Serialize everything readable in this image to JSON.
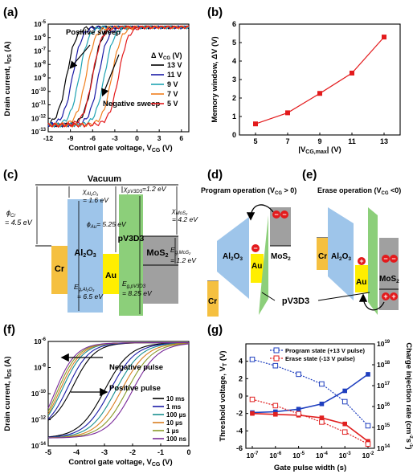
{
  "colors": {
    "c13V": "#000000",
    "c11V": "#1a1aa6",
    "c9V": "#1fa3b3",
    "c7V": "#f07f1e",
    "c5V": "#e31a1c",
    "f10ms": "#000000",
    "f1ms": "#1a1aa6",
    "f100us": "#1a8f8f",
    "f10us": "#d97f20",
    "f1us": "#8a9a2a",
    "f100ns": "#7a2a9a",
    "al2o3": "#9ec5ea",
    "pv3d3": "#8ccf7a",
    "mos2": "#a0a0a0",
    "au": "#ffee00",
    "cr": "#f5c040",
    "hole": "#e31a1c",
    "program": "#1f3fbf",
    "erase": "#e02020"
  },
  "panels": {
    "a": {
      "label": "(a)",
      "xlabel": "Control gate voltage, V",
      "xlabel_sub": "CG",
      "xlabel_unit": " (V)",
      "ylabel": "Drain current, I",
      "ylabel_sub": "DS",
      "ylabel_unit": " (A)",
      "pos_label": "Positive sweep",
      "neg_label": "Negative sweep",
      "legend_title": "Δ V",
      "legend_title_sub": "CG",
      "legend_title_unit": " (V)",
      "legend": [
        "13 V",
        "11 V",
        "9 V",
        "7 V",
        "5 V"
      ],
      "xticks": [
        "-12",
        "-9",
        "-6",
        "-3",
        "0",
        "3",
        "6"
      ],
      "ytick_mant": [
        "10",
        "10",
        "10",
        "10",
        "10",
        "10",
        "10",
        "10",
        "10"
      ],
      "ytick_exp": [
        "-5",
        "-6",
        "-7",
        "-8",
        "-9",
        "-10",
        "-11",
        "-12",
        "-13"
      ]
    },
    "b": {
      "label": "(b)",
      "xlabel": "|V",
      "xlabel_sub": "CG,max",
      "xlabel_unit": "| (V)",
      "ylabel": "Memory window, ΔV (V)",
      "xticks": [
        "5",
        "7",
        "9",
        "11",
        "13"
      ],
      "yticks": [
        "0",
        "1",
        "2",
        "3",
        "4",
        "5",
        "6"
      ]
    },
    "c": {
      "label": "(c)",
      "vacuum": "Vacuum",
      "cr": "Cr",
      "al2o3": "Al",
      "al2o3_sub1": "2",
      "al2o3_o": "O",
      "al2o3_sub2": "3",
      "au": "Au",
      "pv3d3": "pV3D3",
      "mos2": "MoS",
      "mos2_sub": "2",
      "phi_cr": "ϕ",
      "phi_cr_sub": "Cr",
      "phi_cr_val": "= 4.5 eV",
      "chi_al": "χ",
      "chi_al_sub": "Al₂O₃",
      "chi_al_val": "= 1.6 eV",
      "chi_pv": "χ",
      "chi_pv_sub": "pV3D3",
      "chi_pv_val": "=1.2 eV",
      "phi_au": "ϕ",
      "phi_au_sub": "Au",
      "phi_au_val": "= 5.25 eV",
      "chi_mos": "χ",
      "chi_mos_sub": "MoS₂",
      "chi_mos_val": "= 4.2 eV",
      "eg_mos": "E",
      "eg_mos_sub": "g,MoS₂",
      "eg_mos_val": "= 1.2 eV",
      "eg_al": "E",
      "eg_al_sub": "g,Al₂O₃",
      "eg_al_val": "= 6.5 eV",
      "eg_pv": "E",
      "eg_pv_sub": "g,pV3D3",
      "eg_pv_val": "= 8.25 eV"
    },
    "d": {
      "label": "(d)",
      "title": "Program operation (V",
      "title_sub": "CG",
      "title_end": " > 0)",
      "al2o3": "Al",
      "al2o3_sub1": "2",
      "al2o3_o": "O",
      "al2o3_sub2": "3",
      "au": "Au",
      "mos2": "MoS",
      "mos2_sub": "2",
      "cr": "Cr",
      "minus": "−"
    },
    "e": {
      "label": "(e)",
      "title": "Erase operation (V",
      "title_sub": "CG",
      "title_end": " <0)",
      "al2o3": "Al",
      "al2o3_sub1": "2",
      "al2o3_o": "O",
      "al2o3_sub2": "3",
      "au": "Au",
      "mos2": "MoS",
      "mos2_sub": "2",
      "cr": "Cr",
      "minus": "−",
      "plus": "+"
    },
    "pv3d3_shared": "pV3D3",
    "f": {
      "label": "(f)",
      "xlabel": "Control gate voltage, V",
      "xlabel_sub": "CG",
      "xlabel_unit": " (V)",
      "ylabel": "Drain current, I",
      "ylabel_sub": "DS",
      "ylabel_unit": " (A)",
      "neg_label": "Negative pulse",
      "pos_label": "Positive pulse",
      "legend": [
        "10 ms",
        "1 ms",
        "100 µs",
        "10 µs",
        "1 µs",
        "100 ns"
      ],
      "xticks": [
        "-5",
        "-4",
        "-3",
        "-2",
        "-1",
        "0"
      ],
      "ytick_mant": [
        "10",
        "10",
        "10",
        "10",
        "10"
      ],
      "ytick_exp": [
        "-6",
        "-8",
        "-10",
        "-12",
        "-14"
      ]
    },
    "g": {
      "label": "(g)",
      "xlabel": "Gate pulse width (s)",
      "ylabel_left": "Threshold voltage, V",
      "ylabel_left_sub": "T",
      "ylabel_left_unit": " (V)",
      "ylabel_right": "Charge injection rate (cm",
      "ylabel_right_sup": "-2",
      "ylabel_right_mid": "s",
      "ylabel_right_sup2": "-1",
      "ylabel_right_end": ")",
      "legend_prog": "Program state (+13 V pulse)",
      "legend_erase": "Erase state (-13 V pulse)",
      "xtick_mant": [
        "10",
        "10",
        "10",
        "10",
        "10",
        "10"
      ],
      "xtick_exp": [
        "-7",
        "-6",
        "-5",
        "-4",
        "-3",
        "-2"
      ],
      "yticks_left": [
        "4",
        "2",
        "0",
        "-2",
        "-4",
        "-6"
      ],
      "ytick_right_mant": [
        "10",
        "10",
        "10",
        "10",
        "10",
        "10"
      ],
      "ytick_right_exp": [
        "19",
        "18",
        "17",
        "16",
        "15",
        "14"
      ]
    }
  },
  "chart_data": [
    {
      "panel": "a",
      "type": "line",
      "xlabel": "Control gate voltage, VCG (V)",
      "ylabel": "Drain current, IDS (A)",
      "xlim": [
        -12,
        7
      ],
      "ylim": [
        1e-13,
        1e-05
      ],
      "yscale": "log",
      "series": [
        {
          "name": "13 V",
          "rise_forward": -9.5,
          "rise_reverse": -6.0
        },
        {
          "name": "11 V",
          "rise_forward": -8.7,
          "rise_reverse": -5.2
        },
        {
          "name": "9 V",
          "rise_forward": -7.8,
          "rise_reverse": -4.4
        },
        {
          "name": "7 V",
          "rise_forward": -6.9,
          "rise_reverse": -3.4
        },
        {
          "name": "5 V",
          "rise_forward": -6.0,
          "rise_reverse": -2.5
        }
      ]
    },
    {
      "panel": "b",
      "type": "line",
      "xlabel": "|VCG,max| (V)",
      "ylabel": "Memory window, ΔV (V)",
      "xlim": [
        4,
        14
      ],
      "ylim": [
        0,
        6
      ],
      "x": [
        5,
        7,
        9,
        11,
        13
      ],
      "values": [
        0.6,
        1.2,
        2.25,
        3.35,
        5.3
      ]
    },
    {
      "panel": "f",
      "type": "line",
      "xlabel": "Control gate voltage, VCG (V)",
      "ylabel": "Drain current, IDS (A)",
      "xlim": [
        -5,
        0
      ],
      "ylim": [
        1e-14,
        1e-06
      ],
      "yscale": "log",
      "series": [
        {
          "name": "10 ms",
          "rise_forward": -4.1,
          "rise_reverse": -3.0
        },
        {
          "name": "1 ms",
          "rise_forward": -4.3,
          "rise_reverse": -2.8
        },
        {
          "name": "100 µs",
          "rise_forward": -4.5,
          "rise_reverse": -2.6
        },
        {
          "name": "10 µs",
          "rise_forward": -4.6,
          "rise_reverse": -2.4
        },
        {
          "name": "1 µs",
          "rise_forward": -4.7,
          "rise_reverse": -2.2
        },
        {
          "name": "100 ns",
          "rise_forward": -4.8,
          "rise_reverse": -2.0
        }
      ]
    },
    {
      "panel": "g",
      "type": "line",
      "xlabel": "Gate pulse width (s)",
      "ylabel": "Threshold voltage, VT (V)",
      "y2label": "Charge injection rate (cm-2s-1)",
      "xscale": "log",
      "xlim": [
        1e-07,
        0.01
      ],
      "ylim": [
        -6,
        6
      ],
      "y2lim": [
        100000000000000.0,
        1e+19
      ],
      "x": [
        1e-07,
        1e-06,
        1e-05,
        0.0001,
        0.001,
        0.01
      ],
      "series": [
        {
          "name": "Program state (+13 V pulse)",
          "axis": "left",
          "values": [
            -1.9,
            -1.8,
            -1.5,
            -0.9,
            0.6,
            2.5
          ]
        },
        {
          "name": "Erase state (-13 V pulse)",
          "axis": "left",
          "values": [
            -2.0,
            -2.1,
            -2.2,
            -2.5,
            -3.2,
            -5.2
          ]
        },
        {
          "name": "Program state (+13 V pulse)",
          "axis": "right",
          "values": [
            1.8e+18,
            9e+17,
            3.5e+17,
            1.2e+17,
            1.7e+16,
            1200000000000000.0
          ]
        },
        {
          "name": "Erase state (-13 V pulse)",
          "axis": "right",
          "values": [
            2.2e+16,
            1.1e+16,
            4500000000000000.0,
            1800000000000000.0,
            600000000000000.0,
            160000000000000.0
          ]
        }
      ]
    }
  ]
}
